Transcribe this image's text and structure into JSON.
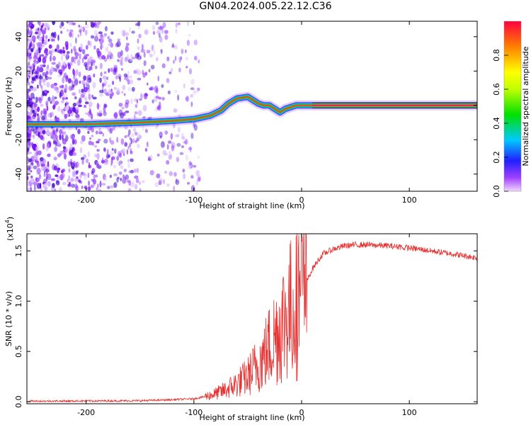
{
  "title": "GN04.2024.005.22.12.C36",
  "chart_data": [
    {
      "type": "heatmap",
      "name": "spectrogram",
      "xlabel": "Height of straight line (km)",
      "ylabel": "Frequency (Hz)",
      "xlim": [
        -255,
        163
      ],
      "ylim": [
        -50,
        49
      ],
      "xticks": [
        -200,
        -100,
        0,
        100
      ],
      "xtick_labels": [
        "-200",
        "-100",
        "0",
        "100"
      ],
      "yticks": [
        -40,
        -20,
        0,
        20,
        40
      ],
      "ytick_labels": [
        "-40",
        "-20",
        "0",
        "20",
        "40"
      ],
      "ridge": {
        "x": [
          -255,
          -200,
          -150,
          -120,
          -100,
          -85,
          -75,
          -68,
          -60,
          -50,
          -40,
          -35,
          -30,
          -25,
          -20,
          -15,
          -10,
          -5,
          0,
          10,
          163
        ],
        "y": [
          -11,
          -11,
          -10,
          -9,
          -8,
          -6,
          -3,
          1,
          4,
          5,
          1,
          0,
          0,
          -2,
          -4,
          -2,
          -1,
          0,
          0,
          0,
          0
        ]
      },
      "colorbar": {
        "label": "Normalized spectral amplitude",
        "range": [
          0,
          1
        ],
        "ticks": [
          0.0,
          0.2,
          0.4,
          0.6,
          0.8
        ],
        "tick_labels": [
          "0.0",
          "0.2",
          "0.4",
          "0.6",
          "0.8"
        ]
      }
    },
    {
      "type": "line",
      "name": "snr",
      "xlabel": "Height of straight line (km)",
      "ylabel": "SNR (10 * v/v)",
      "multiplier_label": "(x10",
      "multiplier_exp": "4",
      "multiplier_close": ")",
      "xlim": [
        -255,
        163
      ],
      "ylim": [
        -0.02,
        1.67
      ],
      "xticks": [
        -200,
        -100,
        0,
        100
      ],
      "xtick_labels": [
        "-200",
        "-100",
        "0",
        "100"
      ],
      "yticks": [
        0.0,
        0.5,
        1.0,
        1.5
      ],
      "ytick_labels": [
        "0.0",
        "0.5",
        "1.0",
        "1.5"
      ],
      "color": "#e53333",
      "envelope": {
        "x": [
          -255,
          -150,
          -120,
          -100,
          -90,
          -80,
          -70,
          -60,
          -50,
          -45,
          -40,
          -35,
          -30,
          -25,
          -20,
          -15,
          -10,
          -5,
          0,
          5,
          10,
          15,
          20,
          30,
          40,
          50,
          60,
          80,
          100,
          120,
          140,
          163
        ],
        "y": [
          0.005,
          0.01,
          0.02,
          0.03,
          0.05,
          0.08,
          0.12,
          0.18,
          0.25,
          0.32,
          0.38,
          0.45,
          0.55,
          0.65,
          0.75,
          0.85,
          0.92,
          0.97,
          1.05,
          1.2,
          1.32,
          1.4,
          1.47,
          1.52,
          1.55,
          1.56,
          1.56,
          1.55,
          1.53,
          1.5,
          1.47,
          1.43
        ]
      }
    }
  ]
}
